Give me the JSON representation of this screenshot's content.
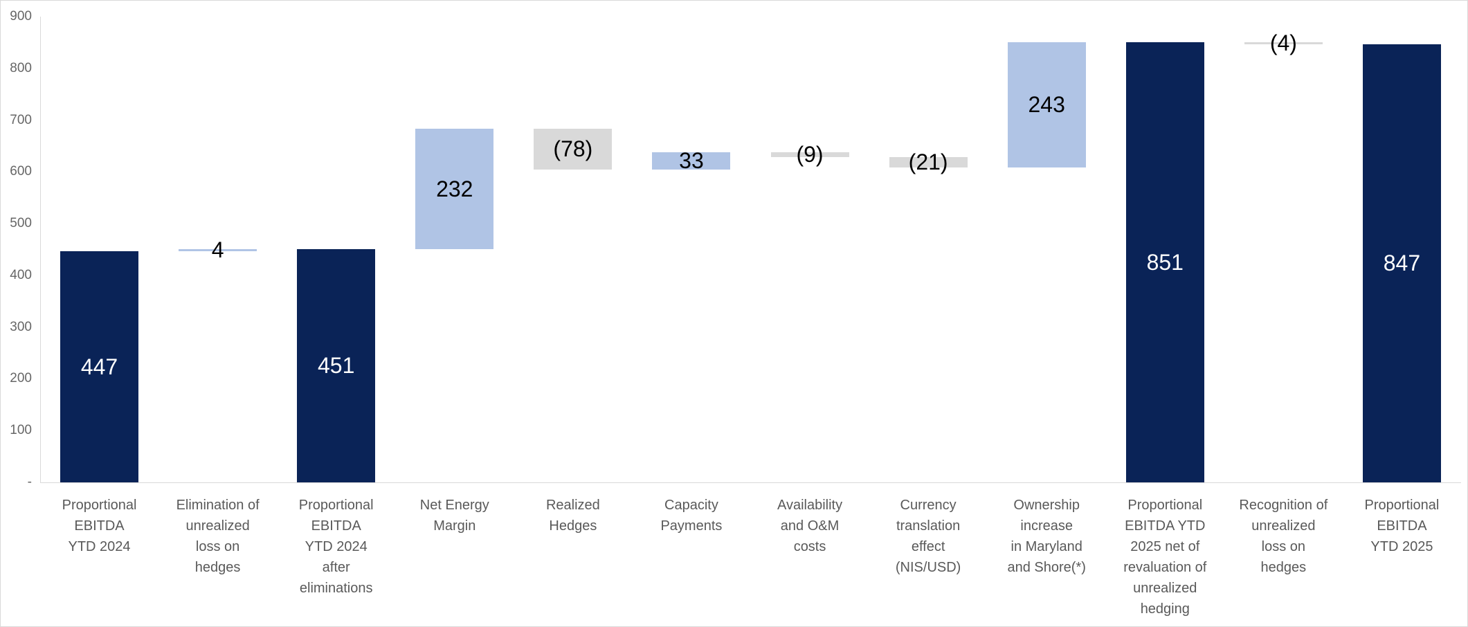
{
  "chart_data": {
    "type": "bar",
    "subtype": "waterfall",
    "title": "",
    "ylim": [
      0,
      900
    ],
    "grid": false,
    "legend": "none",
    "y_axis": {
      "ticks": [
        {
          "label": "900",
          "value": 900
        },
        {
          "label": "800",
          "value": 800
        },
        {
          "label": "700",
          "value": 700
        },
        {
          "label": "600",
          "value": 600
        },
        {
          "label": "500",
          "value": 500
        },
        {
          "label": "400",
          "value": 400
        },
        {
          "label": "300",
          "value": 300
        },
        {
          "label": "200",
          "value": 200
        },
        {
          "label": "100",
          "value": 100
        },
        {
          "label": "-",
          "value": 0
        }
      ]
    },
    "bars": [
      {
        "category": "Proportional\nEBITDA\nYTD 2024",
        "label": "447",
        "value": 447,
        "start": 0,
        "end": 447,
        "role": "total"
      },
      {
        "category": "Elimination of\nunrealized\nloss on\nhedges",
        "label": "4",
        "value": 4,
        "start": 447,
        "end": 451,
        "role": "increase"
      },
      {
        "category": "Proportional\nEBITDA\nYTD 2024\nafter\neliminations",
        "label": "451",
        "value": 451,
        "start": 0,
        "end": 451,
        "role": "total"
      },
      {
        "category": "Net Energy\nMargin",
        "label": "232",
        "value": 232,
        "start": 451,
        "end": 683,
        "role": "increase"
      },
      {
        "category": "Realized\nHedges",
        "label": "(78)",
        "value": -78,
        "start": 683,
        "end": 605,
        "role": "decrease"
      },
      {
        "category": "Capacity\nPayments",
        "label": "33",
        "value": 33,
        "start": 605,
        "end": 638,
        "role": "increase"
      },
      {
        "category": "Availability\nand O&M\ncosts",
        "label": "(9)",
        "value": -9,
        "start": 638,
        "end": 629,
        "role": "decrease"
      },
      {
        "category": "Currency\ntranslation\neffect\n(NIS/USD)",
        "label": "(21)",
        "value": -21,
        "start": 629,
        "end": 608,
        "role": "decrease"
      },
      {
        "category": "Ownership\nincrease\nin Maryland\nand Shore(*)",
        "label": "243",
        "value": 243,
        "start": 608,
        "end": 851,
        "role": "increase"
      },
      {
        "category": "Proportional\nEBITDA YTD\n2025 net of\nrevaluation of\nunrealized\nhedging",
        "label": "851",
        "value": 851,
        "start": 0,
        "end": 851,
        "role": "total"
      },
      {
        "category": "Recognition of\nunrealized\nloss on\nhedges",
        "label": "(4)",
        "value": -4,
        "start": 851,
        "end": 847,
        "role": "decrease"
      },
      {
        "category": "Proportional\nEBITDA\nYTD 2025",
        "label": "847",
        "value": 847,
        "start": 0,
        "end": 847,
        "role": "total"
      }
    ],
    "colors": {
      "total": "#0a2357",
      "increase": "#b0c4e5",
      "decrease": "#d9d9d9",
      "label_on_total": "#ffffff",
      "label_on_change": "#000000",
      "axis_line": "#d9d9d9",
      "axis_text": "#666666",
      "category_text": "#595959"
    }
  }
}
